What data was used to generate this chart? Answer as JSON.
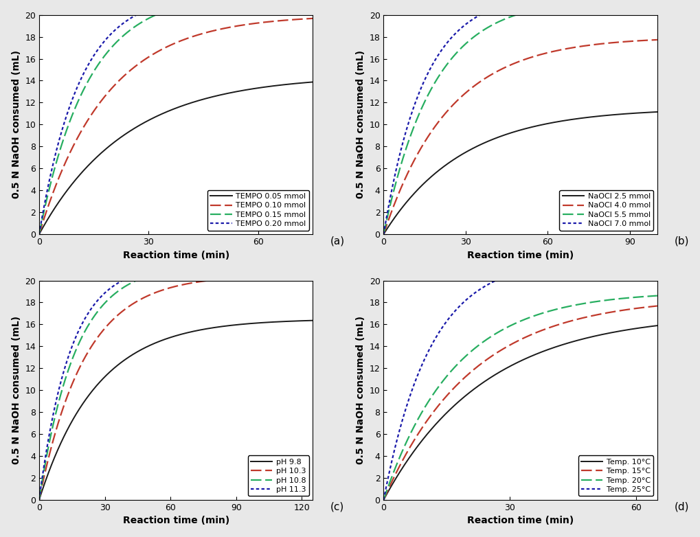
{
  "subplot_a": {
    "label": "(a)",
    "xlabel": "Reaction time (min)",
    "ylabel": "0.5 N NaOH consumed (mL)",
    "xlim": [
      0,
      75
    ],
    "ylim": [
      0,
      20
    ],
    "xticks": [
      0,
      30,
      60
    ],
    "yticks": [
      0,
      2,
      4,
      6,
      8,
      10,
      12,
      14,
      16,
      18,
      20
    ],
    "series": [
      {
        "label": "TEMPO 0.05 mmol",
        "color": "#1a1a1a",
        "lstyle": "solid",
        "lw": 1.4,
        "A": 14.5,
        "k": 0.042
      },
      {
        "label": "TEMPO 0.10 mmol",
        "color": "#c0392b",
        "lstyle": "dashed_long",
        "lw": 1.6,
        "A": 20.0,
        "k": 0.055
      },
      {
        "label": "TEMPO 0.15 mmol",
        "color": "#27ae60",
        "lstyle": "dashed_long",
        "lw": 1.6,
        "A": 22.0,
        "k": 0.075
      },
      {
        "label": "TEMPO 0.20 mmol",
        "color": "#1a1aaa",
        "lstyle": "dotted",
        "lw": 1.6,
        "A": 22.0,
        "k": 0.09
      }
    ]
  },
  "subplot_b": {
    "label": "(b)",
    "xlabel": "Reaction time (min)",
    "ylabel": "0.5 N NaOH consumed (mL)",
    "xlim": [
      0,
      100
    ],
    "ylim": [
      0,
      20
    ],
    "xticks": [
      0,
      30,
      60,
      90
    ],
    "yticks": [
      0,
      2,
      4,
      6,
      8,
      10,
      12,
      14,
      16,
      18,
      20
    ],
    "series": [
      {
        "label": "NaOCl 2.5 mmol",
        "color": "#1a1a1a",
        "lstyle": "solid",
        "lw": 1.4,
        "A": 11.5,
        "k": 0.035
      },
      {
        "label": "NaOCl 4.0 mmol",
        "color": "#c0392b",
        "lstyle": "dashed_long",
        "lw": 1.6,
        "A": 18.0,
        "k": 0.042
      },
      {
        "label": "NaOCl 5.5 mmol",
        "color": "#27ae60",
        "lstyle": "dashed_long",
        "lw": 1.6,
        "A": 21.5,
        "k": 0.055
      },
      {
        "label": "NaOCl 7.0 mmol",
        "color": "#1a1aaa",
        "lstyle": "dotted",
        "lw": 1.6,
        "A": 22.0,
        "k": 0.068
      }
    ]
  },
  "subplot_c": {
    "label": "(c)",
    "xlabel": "Reaction time (min)",
    "ylabel": "0.5 N NaOH consumed (mL)",
    "xlim": [
      0,
      125
    ],
    "ylim": [
      0,
      20
    ],
    "xticks": [
      0,
      30,
      60,
      90,
      120
    ],
    "yticks": [
      0,
      2,
      4,
      6,
      8,
      10,
      12,
      14,
      16,
      18,
      20
    ],
    "series": [
      {
        "label": "pH 9.8",
        "color": "#1a1a1a",
        "lstyle": "solid",
        "lw": 1.4,
        "A": 16.5,
        "k": 0.038
      },
      {
        "label": "pH 10.3",
        "color": "#c0392b",
        "lstyle": "dashed_long",
        "lw": 1.6,
        "A": 20.5,
        "k": 0.048
      },
      {
        "label": "pH 10.8",
        "color": "#27ae60",
        "lstyle": "dashed_long",
        "lw": 1.6,
        "A": 21.5,
        "k": 0.06
      },
      {
        "label": "pH 11.3",
        "color": "#1a1aaa",
        "lstyle": "dotted",
        "lw": 1.6,
        "A": 21.5,
        "k": 0.07
      }
    ]
  },
  "subplot_d": {
    "label": "(d)",
    "xlabel": "Reaction time (min)",
    "ylabel": "0.5 N NaOH consumed (mL)",
    "xlim": [
      0,
      65
    ],
    "ylim": [
      0,
      20
    ],
    "xticks": [
      0,
      30,
      60
    ],
    "yticks": [
      0,
      2,
      4,
      6,
      8,
      10,
      12,
      14,
      16,
      18,
      20
    ],
    "series": [
      {
        "label": "Temp. 10°C",
        "color": "#1a1a1a",
        "lstyle": "solid",
        "lw": 1.4,
        "A": 17.0,
        "k": 0.042
      },
      {
        "label": "Temp. 15°C",
        "color": "#c0392b",
        "lstyle": "dashed_long",
        "lw": 1.6,
        "A": 18.5,
        "k": 0.048
      },
      {
        "label": "Temp. 20°C",
        "color": "#27ae60",
        "lstyle": "dashed_long",
        "lw": 1.6,
        "A": 19.0,
        "k": 0.06
      },
      {
        "label": "Temp. 25°C",
        "color": "#1a1aaa",
        "lstyle": "dotted",
        "lw": 1.6,
        "A": 22.0,
        "k": 0.09
      }
    ]
  },
  "figure_bg": "#e8e8e8",
  "axes_bg": "#ffffff",
  "font_size_label": 10,
  "font_size_tick": 9,
  "font_size_legend": 8,
  "font_size_panel": 11
}
